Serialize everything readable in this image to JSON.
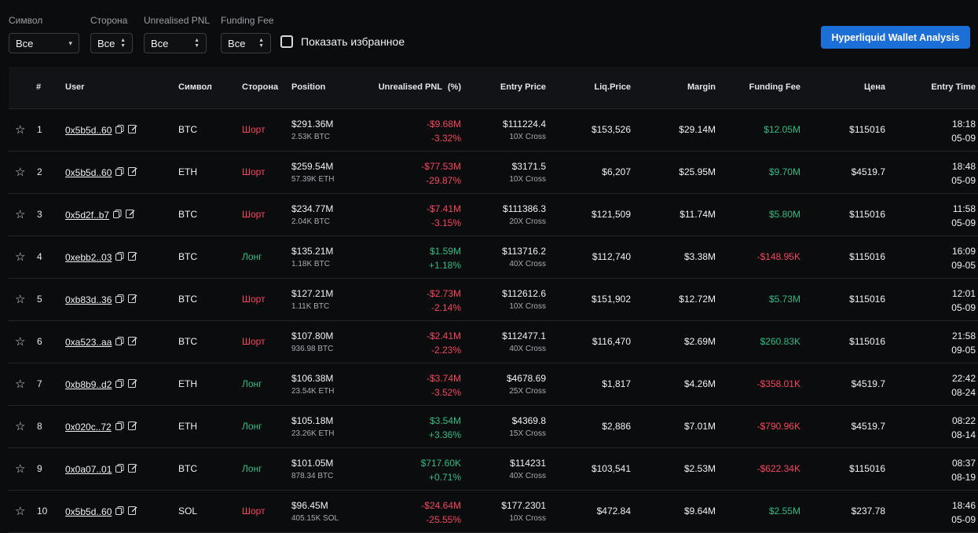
{
  "filters": [
    {
      "label": "Символ",
      "value": "Все",
      "control": "chevron"
    },
    {
      "label": "Сторона",
      "value": "Все",
      "control": "updown"
    },
    {
      "label": "Unrealised PNL",
      "value": "Все",
      "control": "updown"
    },
    {
      "label": "Funding Fee",
      "value": "Все",
      "control": "updown"
    }
  ],
  "favorites_label": "Показать избранное",
  "analysis_button": "Hyperliquid Wallet Analysis",
  "columns": {
    "num": "#",
    "user": "User",
    "symbol": "Символ",
    "side": "Сторона",
    "position": "Position",
    "pnl": "Unrealised PNL",
    "pct": "(%)",
    "entry": "Entry Price",
    "liq": "Liq.Price",
    "margin": "Margin",
    "funding": "Funding Fee",
    "price": "Цена",
    "time": "Entry Time"
  },
  "colors": {
    "short": "#f6465d",
    "long": "#2ebd85",
    "accent": "#1d6fd8"
  },
  "rows": [
    {
      "n": "1",
      "user": "0x5b5d..60",
      "symbol": "BTC",
      "side": "Шорт",
      "pos": "$291.36M",
      "size": "2.53K BTC",
      "pnl": "-$9.68M",
      "pct": "-3.32%",
      "entry": "$111224.4",
      "lev": "10X Cross",
      "liq": "$153,526",
      "margin": "$29.14M",
      "fee": "$12.05M",
      "price": "$115016",
      "time": "18:18",
      "date": "05-09"
    },
    {
      "n": "2",
      "user": "0x5b5d..60",
      "symbol": "ETH",
      "side": "Шорт",
      "pos": "$259.54M",
      "size": "57.39K ETH",
      "pnl": "-$77.53M",
      "pct": "-29.87%",
      "entry": "$3171.5",
      "lev": "10X Cross",
      "liq": "$6,207",
      "margin": "$25.95M",
      "fee": "$9.70M",
      "price": "$4519.7",
      "time": "18:48",
      "date": "05-09"
    },
    {
      "n": "3",
      "user": "0x5d2f..b7",
      "symbol": "BTC",
      "side": "Шорт",
      "pos": "$234.77M",
      "size": "2.04K BTC",
      "pnl": "-$7.41M",
      "pct": "-3.15%",
      "entry": "$111386.3",
      "lev": "20X Cross",
      "liq": "$121,509",
      "margin": "$11.74M",
      "fee": "$5.80M",
      "price": "$115016",
      "time": "11:58",
      "date": "05-09"
    },
    {
      "n": "4",
      "user": "0xebb2..03",
      "symbol": "BTC",
      "side": "Лонг",
      "pos": "$135.21M",
      "size": "1.18K BTC",
      "pnl": "$1.59M",
      "pct": "+1.18%",
      "entry": "$113716.2",
      "lev": "40X Cross",
      "liq": "$112,740",
      "margin": "$3.38M",
      "fee": "-$148.95K",
      "price": "$115016",
      "time": "16:09",
      "date": "09-05"
    },
    {
      "n": "5",
      "user": "0xb83d..36",
      "symbol": "BTC",
      "side": "Шорт",
      "pos": "$127.21M",
      "size": "1.11K BTC",
      "pnl": "-$2.73M",
      "pct": "-2.14%",
      "entry": "$112612.6",
      "lev": "10X Cross",
      "liq": "$151,902",
      "margin": "$12.72M",
      "fee": "$5.73M",
      "price": "$115016",
      "time": "12:01",
      "date": "05-09"
    },
    {
      "n": "6",
      "user": "0xa523..aa",
      "symbol": "BTC",
      "side": "Шорт",
      "pos": "$107.80M",
      "size": "936.98 BTC",
      "pnl": "-$2.41M",
      "pct": "-2.23%",
      "entry": "$112477.1",
      "lev": "40X Cross",
      "liq": "$116,470",
      "margin": "$2.69M",
      "fee": "$260.83K",
      "price": "$115016",
      "time": "21:58",
      "date": "09-05"
    },
    {
      "n": "7",
      "user": "0xb8b9..d2",
      "symbol": "ETH",
      "side": "Лонг",
      "pos": "$106.38M",
      "size": "23.54K ETH",
      "pnl": "-$3.74M",
      "pct": "-3.52%",
      "entry": "$4678.69",
      "lev": "25X Cross",
      "liq": "$1,817",
      "margin": "$4.26M",
      "fee": "-$358.01K",
      "price": "$4519.7",
      "time": "22:42",
      "date": "08-24"
    },
    {
      "n": "8",
      "user": "0x020c..72",
      "symbol": "ETH",
      "side": "Лонг",
      "pos": "$105.18M",
      "size": "23.26K ETH",
      "pnl": "$3.54M",
      "pct": "+3.36%",
      "entry": "$4369.8",
      "lev": "15X Cross",
      "liq": "$2,886",
      "margin": "$7.01M",
      "fee": "-$790.96K",
      "price": "$4519.7",
      "time": "08:22",
      "date": "08-14"
    },
    {
      "n": "9",
      "user": "0x0a07..01",
      "symbol": "BTC",
      "side": "Лонг",
      "pos": "$101.05M",
      "size": "878.34 BTC",
      "pnl": "$717.60K",
      "pct": "+0.71%",
      "entry": "$114231",
      "lev": "40X Cross",
      "liq": "$103,541",
      "margin": "$2.53M",
      "fee": "-$622.34K",
      "price": "$115016",
      "time": "08:37",
      "date": "08-19"
    },
    {
      "n": "10",
      "user": "0x5b5d..60",
      "symbol": "SOL",
      "side": "Шорт",
      "pos": "$96.45M",
      "size": "405.15K SOL",
      "pnl": "-$24.64M",
      "pct": "-25.55%",
      "entry": "$177.2301",
      "lev": "10X Cross",
      "liq": "$472.84",
      "margin": "$9.64M",
      "fee": "$2.55M",
      "price": "$237.78",
      "time": "18:46",
      "date": "05-09"
    }
  ]
}
